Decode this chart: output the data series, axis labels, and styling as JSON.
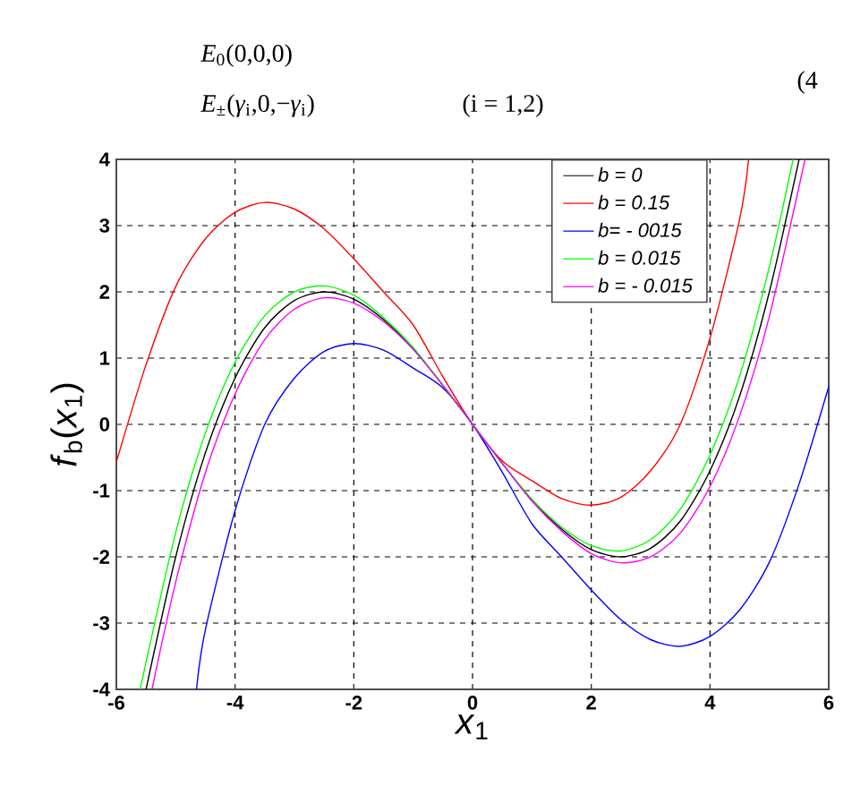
{
  "chart_data": {
    "type": "line",
    "xlabel": "*x*$_{1}$",
    "ylabel": "*f*$_{b}$(*x*$_{1}$)",
    "annotations": [
      "*E*$_{0}$(0,0,0)",
      "*E*$_{±}$(*γ*$_{i}$,0,−*γ*$_{i}$)",
      "(i = 1,2)",
      "(4"
    ],
    "xlim": [
      -6,
      6
    ],
    "ylim": [
      -4,
      4
    ],
    "xticks": [
      -6,
      -4,
      -2,
      0,
      2,
      4,
      6
    ],
    "yticks": [
      -4,
      -3,
      -2,
      -1,
      0,
      1,
      2,
      3,
      4
    ],
    "grid": true,
    "legend": "top right",
    "line_style": "solid",
    "marker": "none",
    "series": [
      {
        "name": "b = 0",
        "color": "#000000",
        "x": [
          -5.5,
          -5,
          -4.5,
          -4,
          -3.5,
          -3,
          -2.5,
          -2,
          -1.5,
          -1,
          -0.5,
          0,
          0.5,
          1,
          1.5,
          2,
          2.5,
          3,
          3.5,
          4,
          4.5,
          5,
          5.5
        ],
        "values": [
          -4.0,
          -2.0,
          -0.43,
          0.7,
          1.46,
          1.87,
          2.0,
          1.89,
          1.58,
          1.14,
          0.59,
          0,
          -0.59,
          -1.14,
          -1.58,
          -1.89,
          -2.0,
          -1.87,
          -1.46,
          -0.7,
          0.43,
          2.0,
          4.0
        ]
      },
      {
        "name": "b = 0.15",
        "color": "#ff0000",
        "x": [
          -6,
          -5.5,
          -5,
          -4.5,
          -4,
          -3.5,
          -3,
          -2.5,
          -2,
          -1.5,
          -1,
          -0.5,
          0,
          0.5,
          1,
          1.5,
          2,
          2.5,
          3,
          3.5,
          4,
          4.5,
          4.65
        ],
        "values": [
          -0.57,
          0.9,
          2.08,
          2.8,
          3.2,
          3.35,
          3.25,
          2.95,
          2.5,
          2.0,
          1.5,
          0.72,
          0,
          -0.55,
          -0.85,
          -1.12,
          -1.22,
          -1.1,
          -0.7,
          0.0,
          1.3,
          3.1,
          4.0
        ]
      },
      {
        "name": "b= - 0015",
        "color": "#0000ff",
        "x": [
          -4.65,
          -4.5,
          -4,
          -3.5,
          -3,
          -2.5,
          -2,
          -1.5,
          -1,
          -0.5,
          0,
          0.5,
          1,
          1.5,
          2,
          2.5,
          3,
          3.5,
          4,
          4.5,
          5,
          5.5,
          6
        ],
        "values": [
          -4.0,
          -3.1,
          -1.3,
          0.0,
          0.7,
          1.1,
          1.22,
          1.12,
          0.85,
          0.55,
          0,
          -0.72,
          -1.5,
          -2.0,
          -2.5,
          -2.95,
          -3.25,
          -3.35,
          -3.2,
          -2.8,
          -2.08,
          -0.9,
          0.57
        ]
      },
      {
        "name": "b = 0.015",
        "color": "#00ff00",
        "x": [
          -5.6,
          -5,
          -4.5,
          -4,
          -3.5,
          -3,
          -2.5,
          -2,
          -1.5,
          -1,
          -0.5,
          0,
          0.5,
          1,
          1.5,
          2,
          2.5,
          3,
          3.5,
          4,
          4.5,
          5,
          5.4
        ],
        "values": [
          -4.0,
          -1.63,
          -0.13,
          0.94,
          1.64,
          2.0,
          2.09,
          1.95,
          1.61,
          1.16,
          0.59,
          0,
          -0.59,
          -1.13,
          -1.55,
          -1.83,
          -1.91,
          -1.74,
          -1.28,
          -0.46,
          0.73,
          2.38,
          4.0
        ]
      },
      {
        "name": "b = - 0.015",
        "color": "#ff00ff",
        "x": [
          -5.4,
          -5,
          -4.5,
          -4,
          -3.5,
          -3,
          -2.5,
          -2,
          -1.5,
          -1,
          -0.5,
          0,
          0.5,
          1,
          1.5,
          2,
          2.5,
          3,
          3.5,
          4,
          4.5,
          5,
          5.6
        ],
        "values": [
          -4.0,
          -2.38,
          -0.73,
          0.46,
          1.28,
          1.74,
          1.91,
          1.83,
          1.55,
          1.13,
          0.59,
          0,
          -0.59,
          -1.16,
          -1.61,
          -1.95,
          -2.09,
          -2.0,
          -1.64,
          -0.94,
          0.13,
          1.63,
          4.0
        ]
      }
    ]
  }
}
